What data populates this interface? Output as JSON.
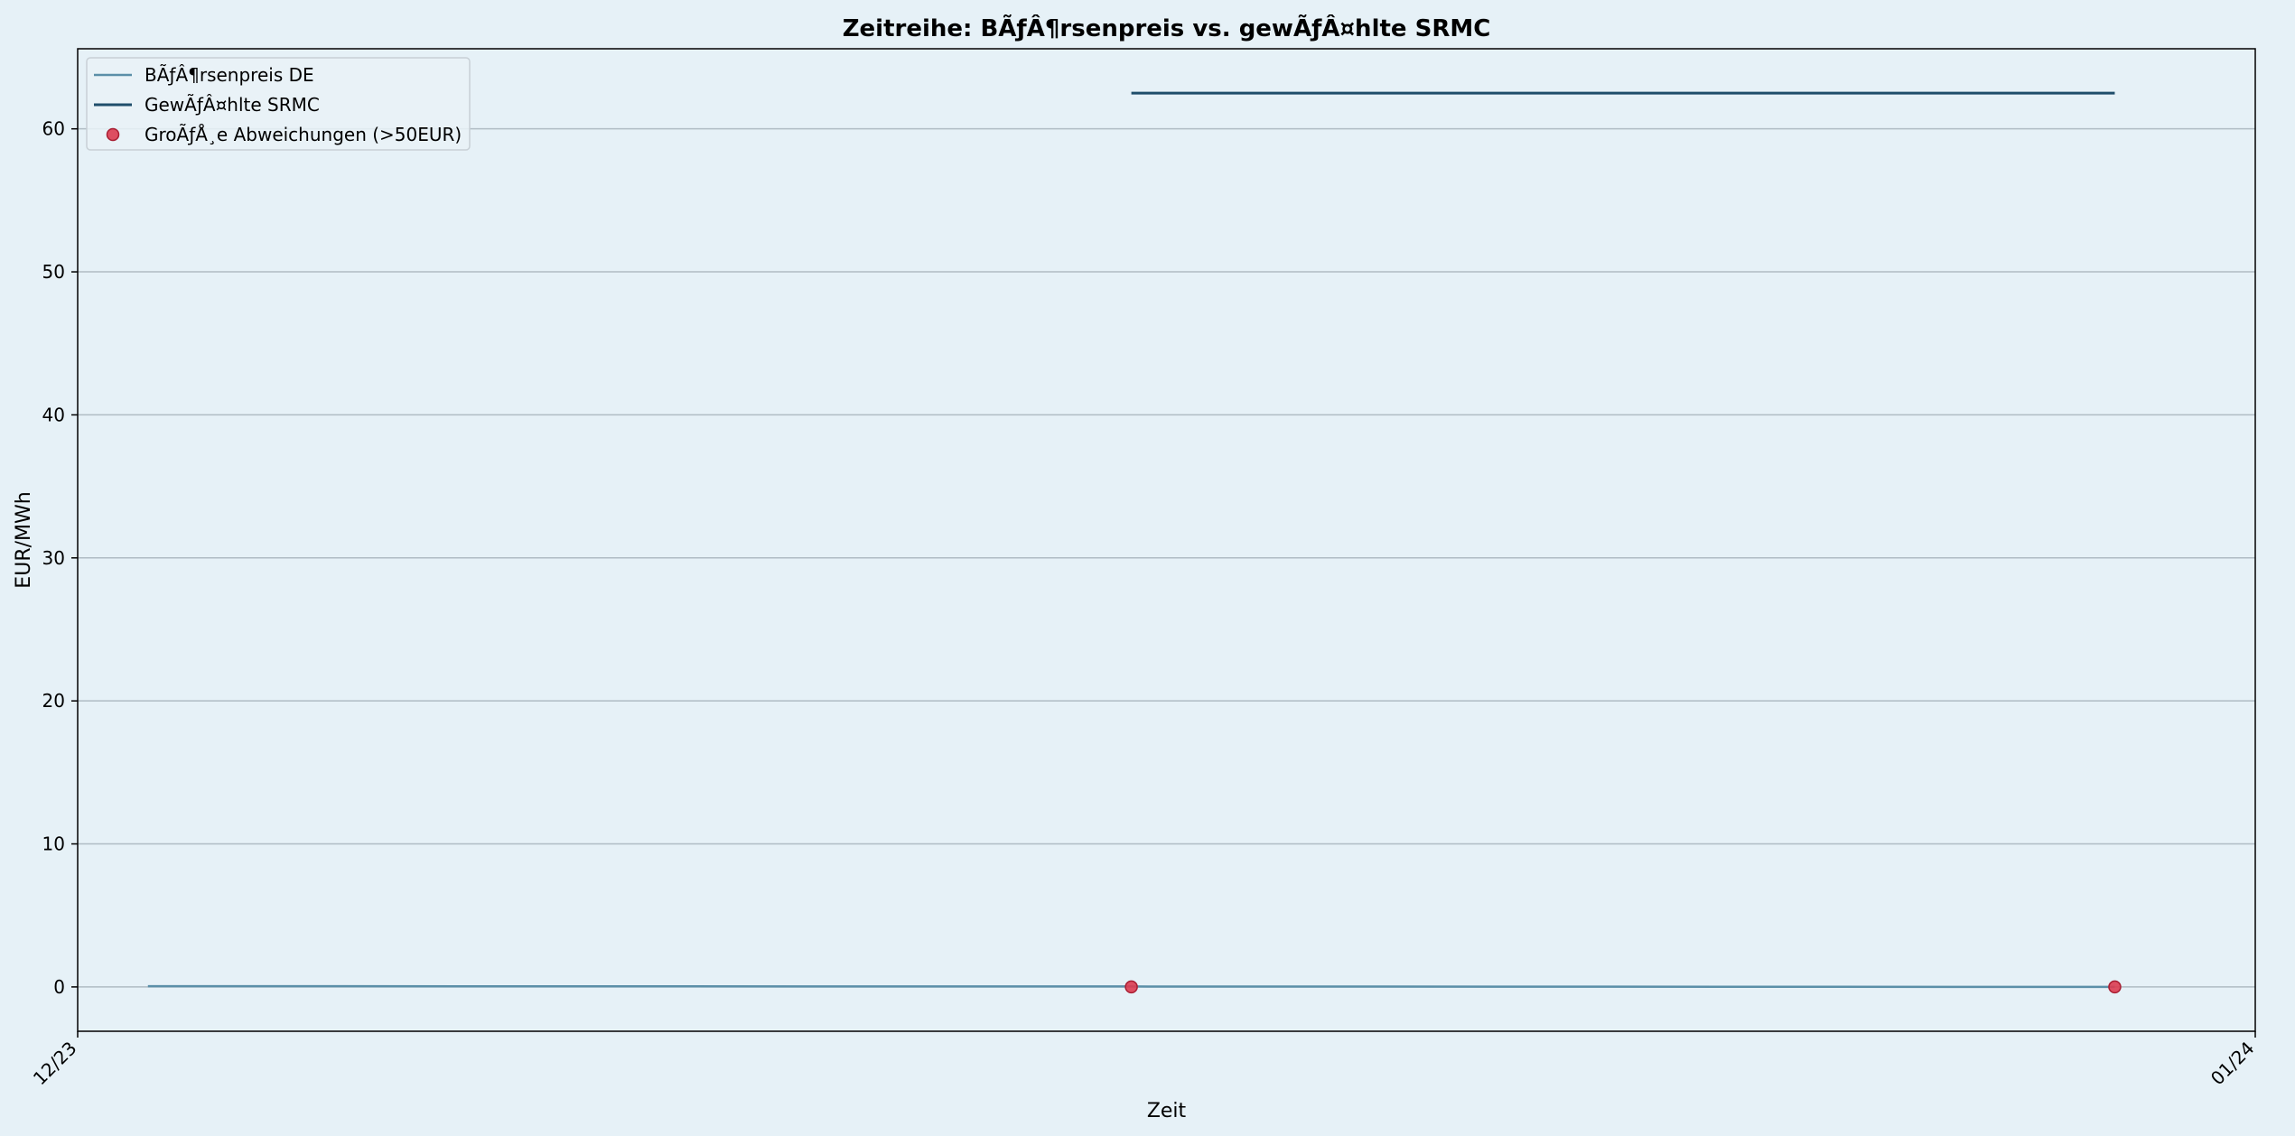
{
  "chart_data": {
    "type": "line",
    "title": "Zeitreihe: BÃƒÂ¶rsenpreis vs. gewÃƒÂ¤hlte SRMC",
    "xlabel": "Zeit",
    "ylabel": "EUR/MWh",
    "x_ticks": [
      "12/23",
      "01/24"
    ],
    "xlim": [
      "2023-12-01",
      "2024-01-01"
    ],
    "ylim": [
      -3.1,
      65.6
    ],
    "y_ticks": [
      0,
      10,
      20,
      30,
      40,
      50,
      60
    ],
    "grid": "horizontal",
    "legend_position": "top-left",
    "series": [
      {
        "name": "BÃƒÂ¶rsenpreis DE",
        "kind": "line",
        "color": "#5b8fa8",
        "x": [
          "2023-12-02",
          "2023-12-16",
          "2023-12-30"
        ],
        "y": [
          0.05,
          0.03,
          0.0
        ]
      },
      {
        "name": "GewÃƒÂ¤hlte SRMC",
        "kind": "line",
        "color": "#1f4e6b",
        "x": [
          "2023-12-16",
          "2023-12-30"
        ],
        "y": [
          62.5,
          62.5
        ]
      },
      {
        "name": "GroÃƒÅ¸e Abweichungen (>50EUR)",
        "kind": "scatter",
        "color": "#dc3c50",
        "x": [
          "2023-12-16",
          "2023-12-30"
        ],
        "y": [
          0,
          0
        ]
      }
    ]
  }
}
